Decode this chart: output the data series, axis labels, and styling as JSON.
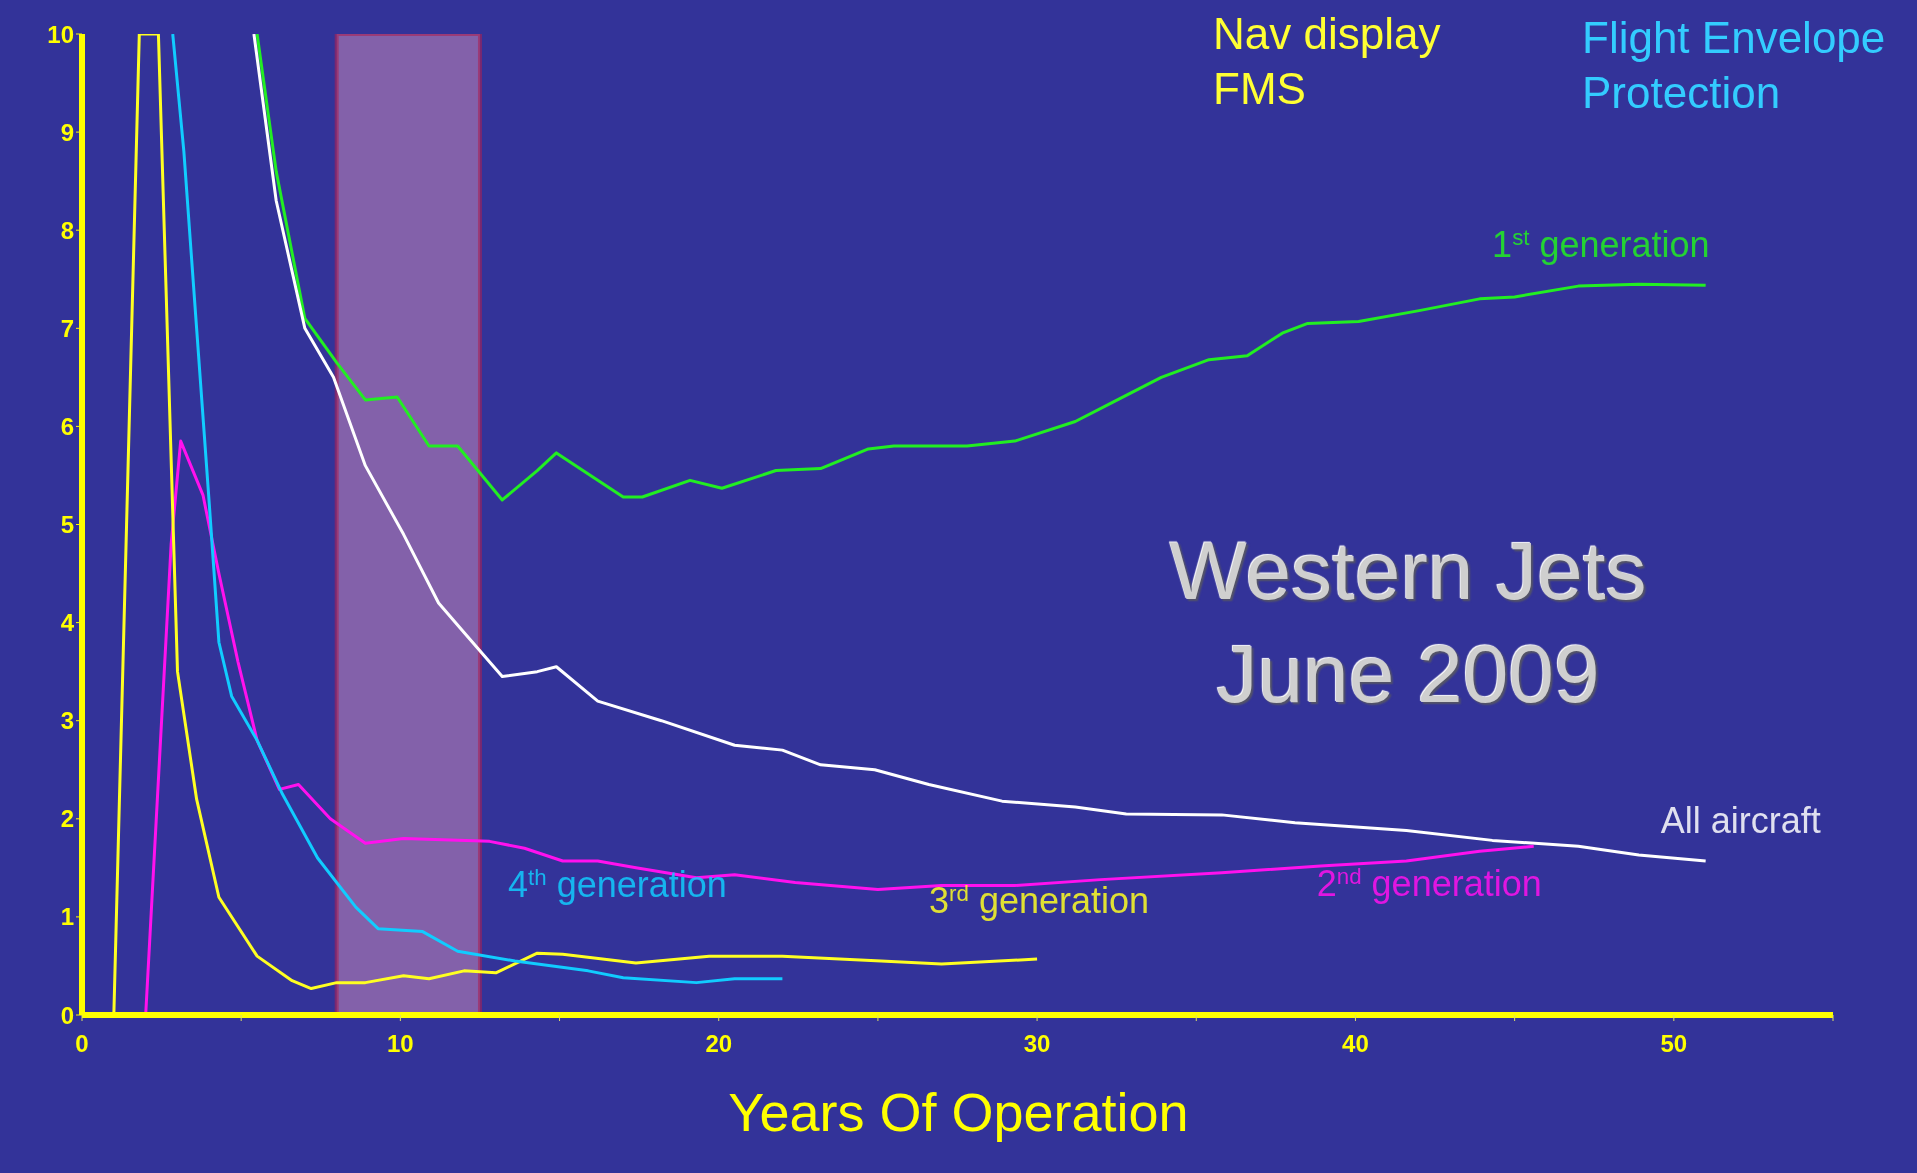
{
  "chart_data": {
    "type": "line",
    "xlabel": "Years Of Operation",
    "annotations": [
      "Nav display\nFMS",
      "Flight Envelope\nProtection",
      "Western Jets\nJune 2009"
    ],
    "xlim": [
      0,
      55
    ],
    "ylim": [
      0,
      10
    ],
    "xticks": [
      0,
      {
        "value": 5,
        "label": null
      },
      10,
      {
        "value": 15,
        "label": null
      },
      20,
      {
        "value": 25,
        "label": null
      },
      30,
      {
        "value": 35,
        "label": null
      },
      40,
      {
        "value": 45,
        "label": null
      },
      50,
      {
        "value": 55,
        "label": null
      }
    ],
    "yticks": [
      0,
      1,
      2,
      3,
      4,
      5,
      6,
      7,
      8,
      9,
      10
    ],
    "grid": false,
    "marker": "none",
    "line_style": "solid",
    "bands": [
      {
        "axis": "x",
        "from": 8,
        "to": 12.5,
        "color": "#c487b8"
      }
    ],
    "series": [
      {
        "name": "1$^{st}$ generation",
        "color": "#22ee22",
        "x": [
          5.5,
          6.1,
          7,
          8,
          8.9,
          9.9,
          10.9,
          11.8,
          13.2,
          14.3,
          14.9,
          16.2,
          17,
          17.6,
          19.1,
          20.1,
          21.8,
          23.2,
          24.7,
          25.5,
          27.8,
          29.3,
          31.2,
          32.4,
          33.9,
          35.4,
          36.6,
          37.7,
          38.5,
          40.1,
          42,
          43.9,
          45,
          47,
          48.9,
          51
        ],
        "values": [
          10,
          8.6,
          7.1,
          6.65,
          6.27,
          6.3,
          5.8,
          5.8,
          5.25,
          5.55,
          5.73,
          5.45,
          5.28,
          5.28,
          5.45,
          5.37,
          5.55,
          5.57,
          5.77,
          5.8,
          5.8,
          5.85,
          6.05,
          6.25,
          6.5,
          6.68,
          6.72,
          6.95,
          7.05,
          7.07,
          7.18,
          7.3,
          7.32,
          7.43,
          7.45,
          7.44
        ]
      },
      {
        "name": "All aircraft",
        "color": "#ffffff",
        "x": [
          5.4,
          6.1,
          7,
          7.9,
          8.9,
          10.1,
          11.2,
          12,
          13.2,
          14.3,
          14.9,
          16.2,
          18.2,
          20.5,
          22,
          23.2,
          24.9,
          26.6,
          28.9,
          31.2,
          32.8,
          35.8,
          38.1,
          41.6,
          44.3,
          47,
          48.9,
          51
        ],
        "values": [
          10,
          8.3,
          7,
          6.5,
          5.6,
          4.9,
          4.2,
          3.9,
          3.45,
          3.5,
          3.55,
          3.2,
          3,
          2.75,
          2.7,
          2.55,
          2.5,
          2.35,
          2.18,
          2.12,
          2.05,
          2.04,
          1.96,
          1.88,
          1.78,
          1.72,
          1.63,
          1.57
        ]
      },
      {
        "name": "2$^{nd}$ generation",
        "color": "#ff11ee",
        "x": [
          2,
          2.8,
          3.1,
          3.8,
          4.3,
          4.9,
          5.5,
          6.2,
          6.8,
          7.8,
          8.9,
          10.1,
          12.8,
          13.9,
          15.1,
          16.2,
          17.4,
          19.3,
          20.5,
          22.4,
          25,
          27,
          29.3,
          32,
          35.8,
          38.9,
          41.6,
          43.9,
          45.6
        ],
        "values": [
          0,
          4.8,
          5.85,
          5.3,
          4.5,
          3.6,
          2.8,
          2.3,
          2.35,
          2,
          1.75,
          1.8,
          1.77,
          1.7,
          1.57,
          1.57,
          1.5,
          1.4,
          1.43,
          1.35,
          1.28,
          1.32,
          1.32,
          1.38,
          1.45,
          1.52,
          1.57,
          1.67,
          1.72
        ]
      },
      {
        "name": "3$^{rd}$ generation",
        "color": "#ffff22",
        "x": [
          1,
          1.4,
          1.8,
          2.4,
          3,
          3.6,
          4.3,
          5.5,
          6.6,
          7.2,
          8,
          8.9,
          10.1,
          10.9,
          12,
          13,
          14.3,
          15.1,
          17.4,
          19.7,
          22,
          25.1,
          27,
          30
        ],
        "values": [
          0,
          5,
          10,
          10,
          3.5,
          2.2,
          1.2,
          0.6,
          0.35,
          0.27,
          0.33,
          0.33,
          0.4,
          0.37,
          0.45,
          0.43,
          0.63,
          0.62,
          0.53,
          0.6,
          0.6,
          0.55,
          0.52,
          0.57
        ]
      },
      {
        "name": "4$^{th}$ generation",
        "color": "#11ccff",
        "x": [
          2.85,
          3.2,
          3.6,
          4,
          4.3,
          4.7,
          5.5,
          6.3,
          7.4,
          8.6,
          9.3,
          10.7,
          11.8,
          13.6,
          15.9,
          17,
          19.3,
          20.5,
          22
        ],
        "values": [
          10,
          8.8,
          7,
          5.2,
          3.8,
          3.25,
          2.8,
          2.25,
          1.6,
          1.1,
          0.88,
          0.85,
          0.65,
          0.55,
          0.45,
          0.38,
          0.33,
          0.37,
          0.37
        ]
      }
    ]
  }
}
